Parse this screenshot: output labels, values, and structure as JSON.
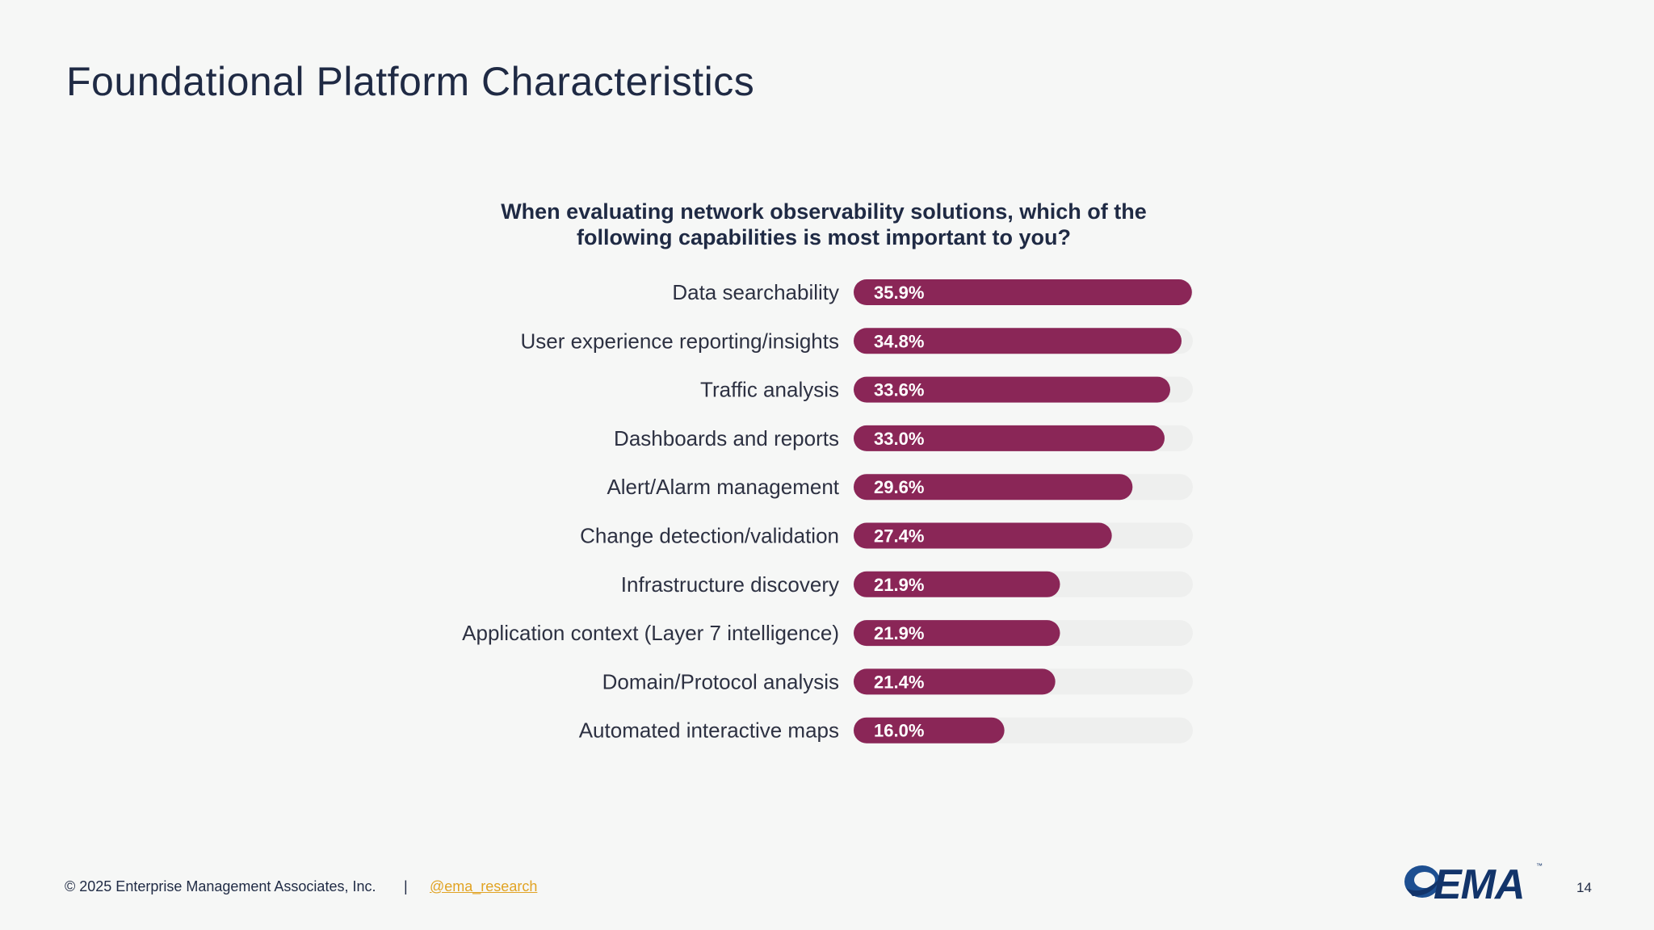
{
  "slide": {
    "title": "Foundational Platform Characteristics"
  },
  "footer": {
    "copyright": "© 2025 Enterprise Management Associates, Inc.",
    "separator": "|",
    "handle": "@ema_research",
    "page_number": "14"
  },
  "logo": {
    "text": "EMA",
    "tm": "™"
  },
  "colors": {
    "bar": "#8a2657",
    "track": "#eeefee",
    "label_text": "#2d3142",
    "value_text": "#ffffff"
  },
  "chart_data": {
    "type": "bar",
    "orientation": "horizontal",
    "title": "When evaluating network observability solutions, which of the following capabilities is most important to you?",
    "xlabel": "",
    "ylabel": "",
    "xlim": [
      0,
      36
    ],
    "categories": [
      "Data searchability",
      "User experience reporting/insights",
      "Traffic analysis",
      "Dashboards and reports",
      "Alert/Alarm management",
      "Change detection/validation",
      "Infrastructure discovery",
      "Application context (Layer 7 intelligence)",
      "Domain/Protocol analysis",
      "Automated interactive maps"
    ],
    "values": [
      35.9,
      34.8,
      33.6,
      33.0,
      29.6,
      27.4,
      21.9,
      21.9,
      21.4,
      16.0
    ],
    "value_labels": [
      "35.9%",
      "34.8%",
      "33.6%",
      "33.0%",
      "29.6%",
      "27.4%",
      "21.9%",
      "21.9%",
      "21.4%",
      "16.0%"
    ],
    "grid": false,
    "legend": "none"
  }
}
